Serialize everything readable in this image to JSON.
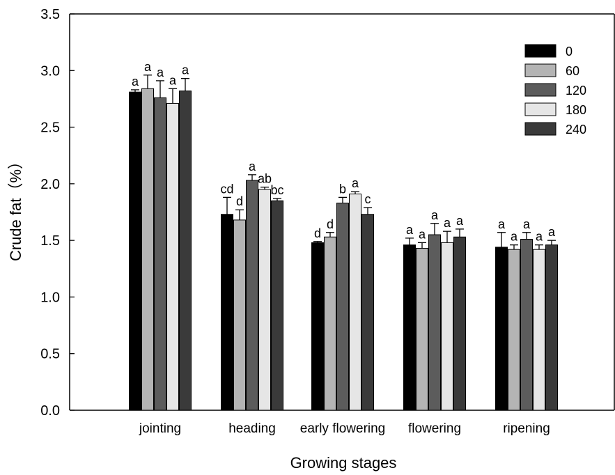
{
  "chart_data": {
    "type": "bar",
    "title": "",
    "xlabel": "Growing stages",
    "ylabel": "Crude fat（%）",
    "ylim": [
      0,
      3.5
    ],
    "yticks": [
      "0.0",
      "0.5",
      "1.0",
      "1.5",
      "2.0",
      "2.5",
      "3.0",
      "3.5"
    ],
    "categories": [
      "jointing",
      "heading",
      "early flowering",
      "flowering",
      "ripening"
    ],
    "legend_position": "top-right",
    "series": [
      {
        "name": "0",
        "color": "#000000",
        "values": [
          2.81,
          1.73,
          1.48,
          1.46,
          1.44
        ],
        "errors": [
          0.02,
          0.15,
          0.01,
          0.06,
          0.13
        ],
        "labels": [
          "a",
          "cd",
          "d",
          "a",
          "a"
        ]
      },
      {
        "name": "60",
        "color": "#b4b4b4",
        "values": [
          2.84,
          1.68,
          1.53,
          1.43,
          1.42
        ],
        "errors": [
          0.12,
          0.09,
          0.04,
          0.05,
          0.04
        ],
        "labels": [
          "a",
          "d",
          "d",
          "a",
          "a"
        ]
      },
      {
        "name": "120",
        "color": "#5c5c5c",
        "values": [
          2.76,
          2.03,
          1.83,
          1.55,
          1.51
        ],
        "errors": [
          0.15,
          0.05,
          0.05,
          0.1,
          0.06
        ],
        "labels": [
          "a",
          "a",
          "b",
          "a",
          "a"
        ]
      },
      {
        "name": "180",
        "color": "#e6e6e6",
        "values": [
          2.71,
          1.95,
          1.91,
          1.48,
          1.42
        ],
        "errors": [
          0.13,
          0.02,
          0.02,
          0.1,
          0.04
        ],
        "labels": [
          "a",
          "ab",
          "a",
          "a",
          "a"
        ]
      },
      {
        "name": "240",
        "color": "#3a3a3a",
        "values": [
          2.82,
          1.85,
          1.73,
          1.53,
          1.46
        ],
        "errors": [
          0.11,
          0.02,
          0.06,
          0.07,
          0.04
        ],
        "labels": [
          "a",
          "bc",
          "c",
          "a",
          "a"
        ]
      }
    ]
  }
}
